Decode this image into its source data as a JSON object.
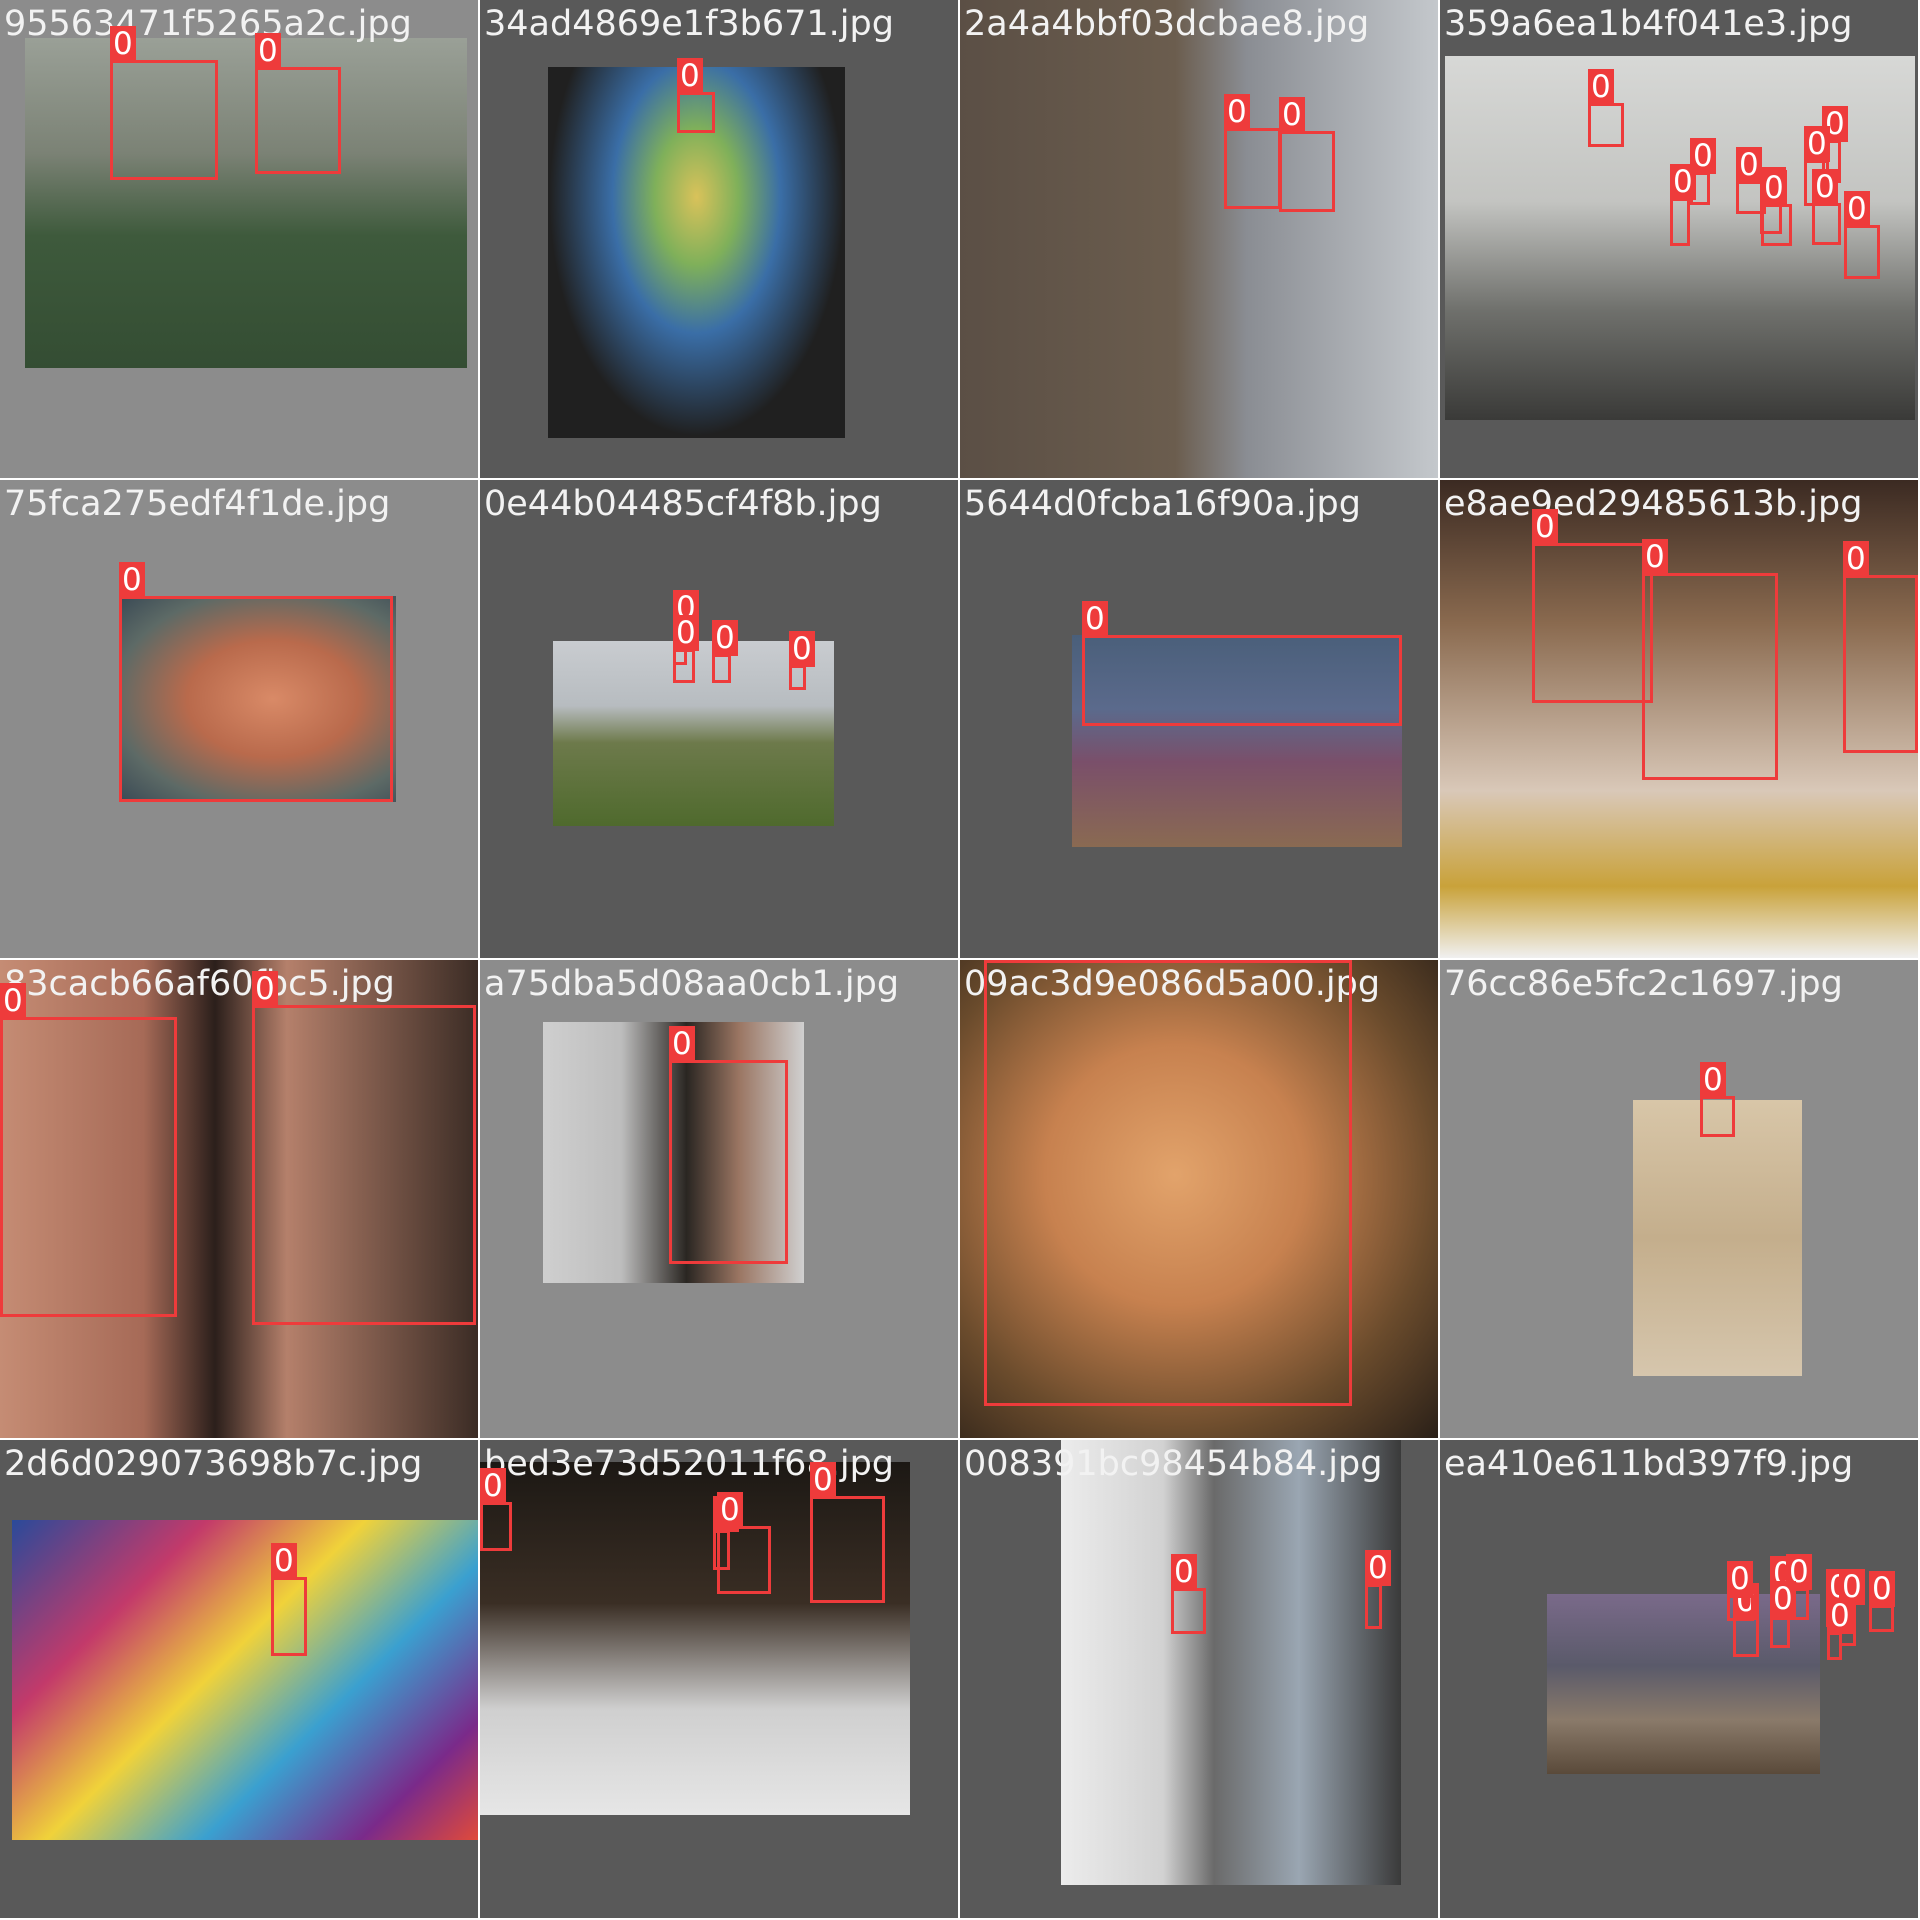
{
  "tiles": [
    {
      "file": "95563471f5265a2c.jpg",
      "bg": "#8c8c8c",
      "photo": [
        25,
        38,
        442,
        330
      ],
      "boxes": [
        {
          "label": "0"
        },
        {
          "label": "0"
        }
      ]
    },
    {
      "file": "34ad4869e1f3b671.jpg",
      "bg": "#595959",
      "photo": [
        68,
        67,
        297,
        371
      ],
      "boxes": [
        {
          "label": "0"
        }
      ]
    },
    {
      "file": "2a4a4bbf03dcbae8.jpg",
      "bg": "#595959",
      "photo": [
        0,
        0,
        478,
        478
      ],
      "boxes": [
        {
          "label": "0"
        },
        {
          "label": "0"
        }
      ]
    },
    {
      "file": "359a6ea1b4f041e3.jpg",
      "bg": "#595959",
      "photo": [
        5,
        56,
        470,
        364
      ],
      "boxes": [
        {
          "label": "0"
        },
        {
          "label": "0"
        },
        {
          "label": "0"
        },
        {
          "label": "0"
        },
        {
          "label": "0"
        },
        {
          "label": "0"
        },
        {
          "label": "0"
        },
        {
          "label": "0"
        },
        {
          "label": "0"
        },
        {
          "label": "0"
        }
      ]
    },
    {
      "file": "75fca275edf4f1de.jpg",
      "bg": "#8c8c8c",
      "photo": [
        122,
        116,
        274,
        206
      ],
      "boxes": [
        {
          "label": "0"
        }
      ]
    },
    {
      "file": "0e44b04485cf4f8b.jpg",
      "bg": "#595959",
      "photo": [
        73,
        161,
        281,
        185
      ],
      "boxes": [
        {
          "label": "0"
        },
        {
          "label": "0"
        },
        {
          "label": "0"
        },
        {
          "label": "0"
        }
      ]
    },
    {
      "file": "5644d0fcba16f90a.jpg",
      "bg": "#595959",
      "photo": [
        112,
        155,
        330,
        212
      ],
      "boxes": [
        {
          "label": "0"
        }
      ]
    },
    {
      "file": "e8ae9ed29485613b.jpg",
      "bg": "#595959",
      "photo": [
        0,
        0,
        478,
        478
      ],
      "boxes": [
        {
          "label": "0"
        },
        {
          "label": "0"
        },
        {
          "label": "0"
        }
      ]
    },
    {
      "file": "83cacb66af60fbc5.jpg",
      "bg": "#595959",
      "photo": [
        0,
        0,
        478,
        478
      ],
      "boxes": [
        {
          "label": "0"
        },
        {
          "label": "0"
        }
      ]
    },
    {
      "file": "a75dba5d08aa0cb1.jpg",
      "bg": "#8c8c8c",
      "photo": [
        63,
        62,
        261,
        261
      ],
      "boxes": [
        {
          "label": "0"
        }
      ]
    },
    {
      "file": "09ac3d9e086d5a00.jpg",
      "bg": "#595959",
      "photo": [
        0,
        0,
        478,
        478
      ],
      "boxes": [
        {
          "label": "0"
        }
      ]
    },
    {
      "file": "76cc86e5fc2c1697.jpg",
      "bg": "#8c8c8c",
      "photo": [
        193,
        140,
        169,
        276
      ],
      "boxes": [
        {
          "label": "0"
        }
      ]
    },
    {
      "file": "2d6d029073698b7c.jpg",
      "bg": "#595959",
      "photo": [
        12,
        80,
        466,
        320
      ],
      "boxes": [
        {
          "label": "0"
        }
      ]
    },
    {
      "file": "bed3e73d52011f68.jpg",
      "bg": "#595959",
      "photo": [
        0,
        22,
        430,
        353
      ],
      "boxes": [
        {
          "label": "0"
        },
        {
          "label": "0"
        },
        {
          "label": "0"
        },
        {
          "label": "0"
        }
      ]
    },
    {
      "file": "008391bc98454b84.jpg",
      "bg": "#595959",
      "photo": [
        101,
        0,
        340,
        445
      ],
      "boxes": [
        {
          "label": "0"
        },
        {
          "label": "0"
        }
      ]
    },
    {
      "file": "ea410e611bd397f9.jpg",
      "bg": "#595959",
      "photo": [
        107,
        154,
        273,
        180
      ],
      "boxes": [
        {
          "label": "0"
        },
        {
          "label": "0"
        },
        {
          "label": "0"
        },
        {
          "label": "0"
        },
        {
          "label": "0"
        },
        {
          "label": "0"
        },
        {
          "label": "0"
        },
        {
          "label": "0"
        },
        {
          "label": "0"
        }
      ]
    }
  ]
}
